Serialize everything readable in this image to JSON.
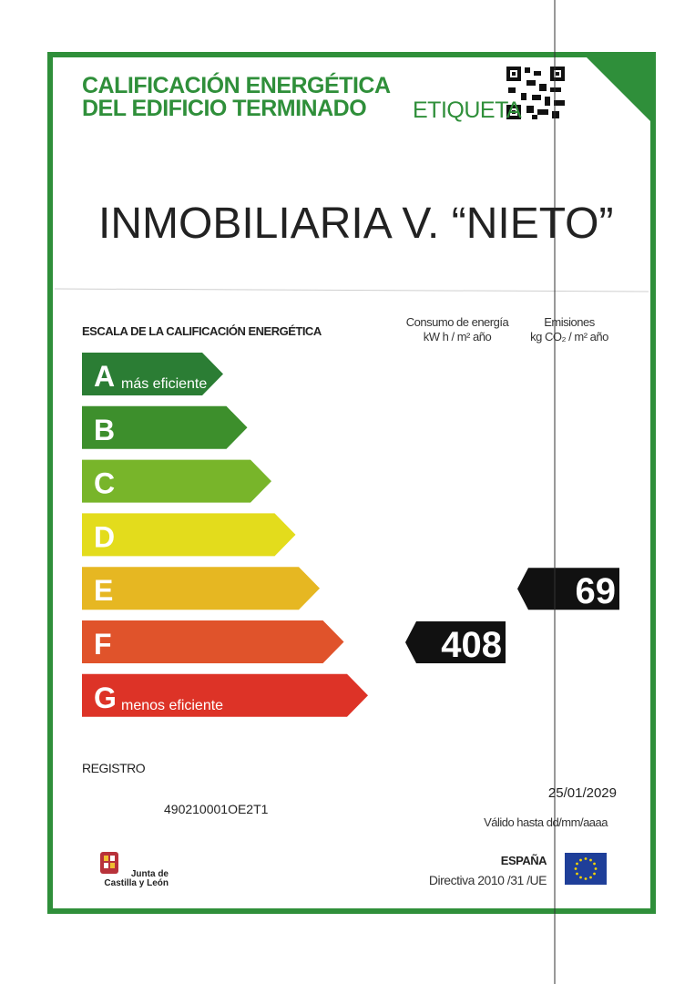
{
  "header": {
    "title_lines": [
      "CALIFICACIÓN ENERGÉTICA",
      "DEL EDIFICIO TERMINADO"
    ],
    "label": "ETIQUETA"
  },
  "building_name": "INMOBILIARIA V. “NIETO”",
  "scale": {
    "title": "ESCALA DE LA CALIFICACIÓN ENERGÉTICA",
    "columns": [
      {
        "lines": [
          "Consumo de energía",
          "kW h / m² año"
        ]
      },
      {
        "lines": [
          "Emisiones",
          "kg CO₂ / m² año"
        ]
      }
    ],
    "ratings": [
      {
        "letter": "A",
        "text": "más eficiente"
      },
      {
        "letter": "B"
      },
      {
        "letter": "C"
      },
      {
        "letter": "D"
      },
      {
        "letter": "E"
      },
      {
        "letter": "F"
      },
      {
        "letter": "G",
        "text": "menos eficiente"
      }
    ],
    "consumption": {
      "value": "408"
    },
    "emissions": {
      "value": "69"
    }
  },
  "registry": {
    "label": "REGISTRO",
    "number": "490210001OE2T1"
  },
  "validity": {
    "date": "25/01/2029",
    "label": "Válido hasta dd/mm/aaaa"
  },
  "footer": {
    "issuer_lines": [
      "Junta de",
      "Castilla y León"
    ],
    "country": "ESPAÑA",
    "directive": "Directiva 2010 /31 /UE"
  }
}
